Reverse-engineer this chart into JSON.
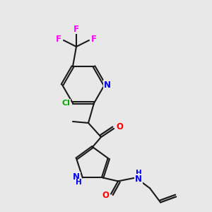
{
  "bg_color": "#e8e8e8",
  "bond_color": "#1a1a1a",
  "atom_colors": {
    "N": "#0000ee",
    "O": "#ff0000",
    "F": "#ff00ff",
    "Cl": "#00aa00",
    "H_blue": "#0000ee",
    "C": "#1a1a1a"
  },
  "figsize": [
    3.0,
    3.0
  ],
  "dpi": 100
}
